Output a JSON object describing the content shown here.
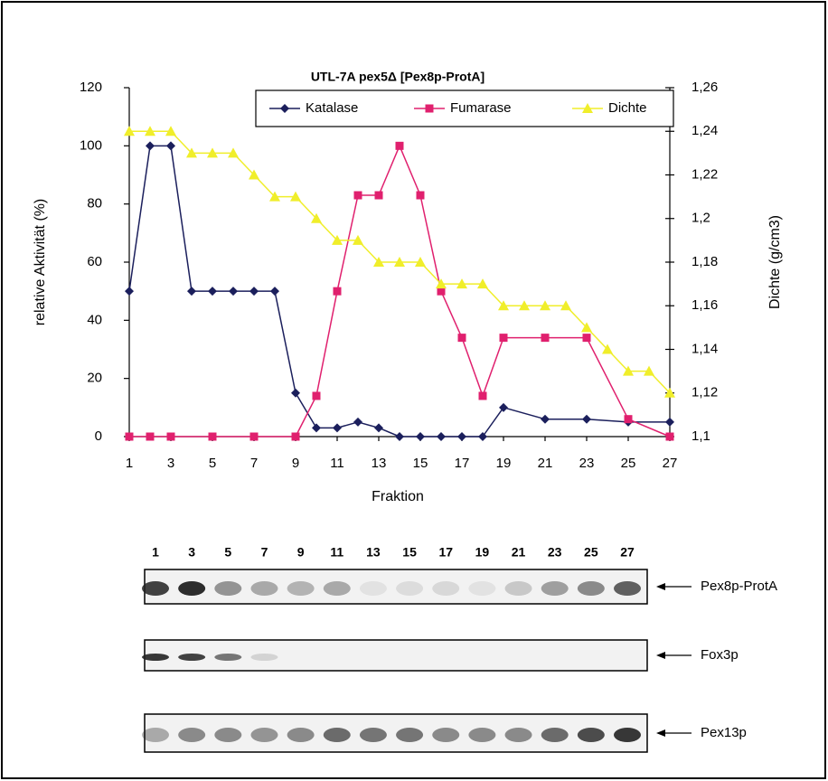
{
  "chart_data": {
    "type": "line",
    "title": "UTL-7A pex5Δ [Pex8p-ProtA]",
    "x_label": "Fraktion",
    "y_label": "relative Aktivität (%)",
    "y2_label": "Dichte (g/cm3)",
    "xlim": [
      1,
      27
    ],
    "xticks": [
      1,
      3,
      5,
      7,
      9,
      11,
      13,
      15,
      17,
      19,
      21,
      23,
      25,
      27
    ],
    "ylim": [
      0,
      120
    ],
    "yticks": [
      0,
      20,
      40,
      60,
      80,
      100,
      120
    ],
    "y2lim": [
      1.1,
      1.26
    ],
    "y2ticks": [
      {
        "value": 1.1,
        "label": "1,1"
      },
      {
        "value": 1.12,
        "label": "1,12"
      },
      {
        "value": 1.14,
        "label": "1,14"
      },
      {
        "value": 1.16,
        "label": "1,16"
      },
      {
        "value": 1.18,
        "label": "1,18"
      },
      {
        "value": 1.2,
        "label": "1,2"
      },
      {
        "value": 1.22,
        "label": "1,22"
      },
      {
        "value": 1.24,
        "label": "1,24"
      },
      {
        "value": 1.26,
        "label": "1,26"
      }
    ],
    "legend": "top-right",
    "series": [
      {
        "name": "Katalase",
        "color": "#1b1f5c",
        "marker": "diamond",
        "x": [
          1,
          2,
          3,
          4,
          5,
          6,
          7,
          8,
          9,
          10,
          11,
          12,
          13,
          14,
          15,
          16,
          17,
          18,
          19,
          21,
          23,
          25,
          27
        ],
        "values": [
          50,
          100,
          100,
          50,
          50,
          50,
          50,
          50,
          15,
          3,
          3,
          5,
          3,
          0,
          0,
          0,
          0,
          0,
          10,
          6,
          6,
          5,
          5
        ]
      },
      {
        "name": "Fumarase",
        "color": "#e0206e",
        "marker": "square",
        "x": [
          1,
          2,
          3,
          5,
          7,
          9,
          10,
          11,
          12,
          13,
          14,
          15,
          16,
          17,
          18,
          19,
          21,
          23,
          25,
          27
        ],
        "values": [
          0,
          0,
          0,
          0,
          0,
          0,
          14,
          50,
          83,
          83,
          100,
          83,
          50,
          34,
          14,
          34,
          34,
          34,
          6,
          0
        ]
      },
      {
        "name": "Dichte",
        "color": "#f0ee2a",
        "marker": "triangle",
        "axis": "y2",
        "x": [
          1,
          2,
          3,
          4,
          5,
          6,
          7,
          8,
          9,
          10,
          11,
          12,
          13,
          14,
          15,
          16,
          17,
          18,
          19,
          20,
          21,
          22,
          23,
          24,
          25,
          26,
          27
        ],
        "values": [
          1.24,
          1.24,
          1.24,
          1.23,
          1.23,
          1.23,
          1.22,
          1.21,
          1.21,
          1.2,
          1.19,
          1.19,
          1.18,
          1.18,
          1.18,
          1.17,
          1.17,
          1.17,
          1.16,
          1.16,
          1.16,
          1.16,
          1.15,
          1.14,
          1.13,
          1.13,
          1.12
        ]
      }
    ]
  },
  "blot": {
    "lanes": [
      "1",
      "3",
      "5",
      "7",
      "9",
      "11",
      "13",
      "15",
      "17",
      "19",
      "21",
      "23",
      "25",
      "27"
    ],
    "rows": [
      {
        "label": "Pex8p-ProtA"
      },
      {
        "label": "Fox3p"
      },
      {
        "label": "Pex13p"
      }
    ]
  }
}
